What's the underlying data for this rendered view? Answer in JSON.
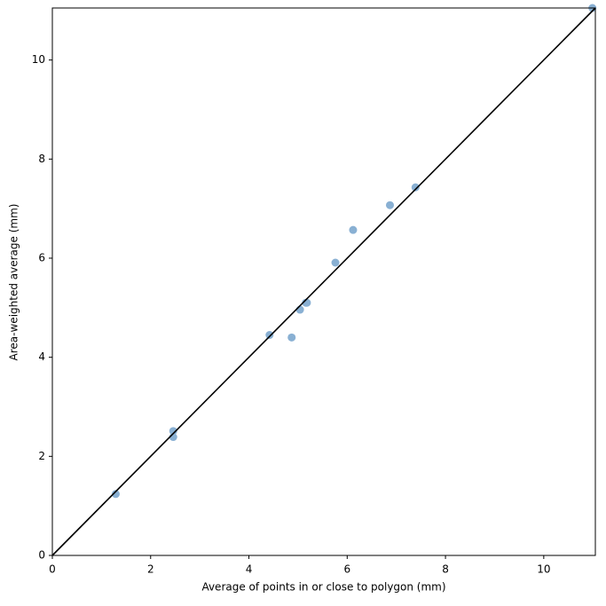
{
  "chart_data": {
    "type": "scatter",
    "x_label": "Average of points in or close to polygon (mm)",
    "y_label": "Area-weighted average (mm)",
    "x": [
      1.29,
      2.46,
      2.46,
      4.42,
      4.87,
      5.04,
      5.16,
      5.18,
      5.76,
      6.12,
      6.87,
      7.39,
      10.99
    ],
    "y": [
      1.24,
      2.51,
      2.39,
      4.45,
      4.4,
      4.96,
      5.1,
      5.1,
      5.91,
      6.57,
      7.07,
      7.43,
      11.05
    ],
    "color": "#89b0d3",
    "reference_line": {
      "x": [
        0,
        11.05
      ],
      "y": [
        0,
        11.05
      ],
      "color": "#000000"
    },
    "xlim": [
      0,
      11.05
    ],
    "ylim": [
      0,
      11.05
    ],
    "xticks": [
      0,
      2,
      4,
      6,
      8,
      10
    ],
    "yticks": [
      0,
      2,
      4,
      6,
      8,
      10
    ]
  }
}
